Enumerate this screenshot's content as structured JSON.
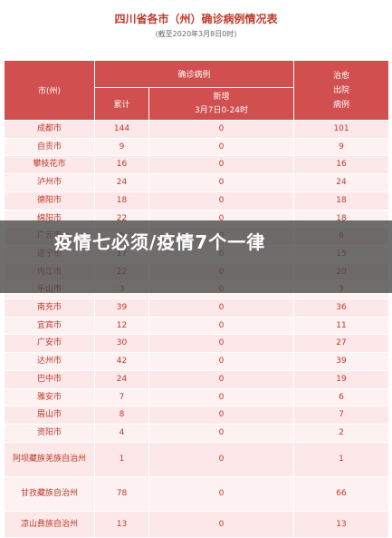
{
  "title": "四川省各市（州）确诊病例情况表",
  "subtitle": "(截至2020年3月8日0时)",
  "headers": {
    "city": "市(州)",
    "confirmed_group": "确诊病例",
    "cumulative": "累计",
    "new_line1": "新增",
    "new_line2": "3月7日0-24时",
    "cured_line1": "治愈",
    "cured_line2": "出院",
    "cured_line3": "病例"
  },
  "rows": [
    {
      "city": "成都市",
      "cum": "144",
      "new": "0",
      "cured": "101"
    },
    {
      "city": "自贡市",
      "cum": "9",
      "new": "0",
      "cured": "9"
    },
    {
      "city": "攀枝花市",
      "cum": "16",
      "new": "0",
      "cured": "16"
    },
    {
      "city": "泸州市",
      "cum": "24",
      "new": "0",
      "cured": "24"
    },
    {
      "city": "德阳市",
      "cum": "18",
      "new": "0",
      "cured": "18"
    },
    {
      "city": "绵阳市",
      "cum": "22",
      "new": "0",
      "cured": "18"
    },
    {
      "city": "广元市",
      "cum": "6",
      "new": "0",
      "cured": "6"
    },
    {
      "city": "遂宁市",
      "cum": "17",
      "new": "0",
      "cured": "15"
    },
    {
      "city": "内江市",
      "cum": "22",
      "new": "0",
      "cured": "20"
    },
    {
      "city": "乐山市",
      "cum": "3",
      "new": "0",
      "cured": "3"
    },
    {
      "city": "南充市",
      "cum": "39",
      "new": "0",
      "cured": "36"
    },
    {
      "city": "宜宾市",
      "cum": "12",
      "new": "0",
      "cured": "11"
    },
    {
      "city": "广安市",
      "cum": "30",
      "new": "0",
      "cured": "27"
    },
    {
      "city": "达州市",
      "cum": "42",
      "new": "0",
      "cured": "39"
    },
    {
      "city": "巴中市",
      "cum": "24",
      "new": "0",
      "cured": "19"
    },
    {
      "city": "雅安市",
      "cum": "7",
      "new": "0",
      "cured": "6"
    },
    {
      "city": "眉山市",
      "cum": "8",
      "new": "0",
      "cured": "7"
    },
    {
      "city": "资阳市",
      "cum": "4",
      "new": "0",
      "cured": "2"
    },
    {
      "city": "阿坝藏族羌族自治州",
      "cum": "1",
      "new": "0",
      "cured": "1"
    },
    {
      "city": "甘孜藏族自治州",
      "cum": "78",
      "new": "0",
      "cured": "66"
    },
    {
      "city": "凉山彝族自治州",
      "cum": "13",
      "new": "0",
      "cured": "13"
    }
  ],
  "overlay_text": "疫情七必须/疫情7个一律"
}
